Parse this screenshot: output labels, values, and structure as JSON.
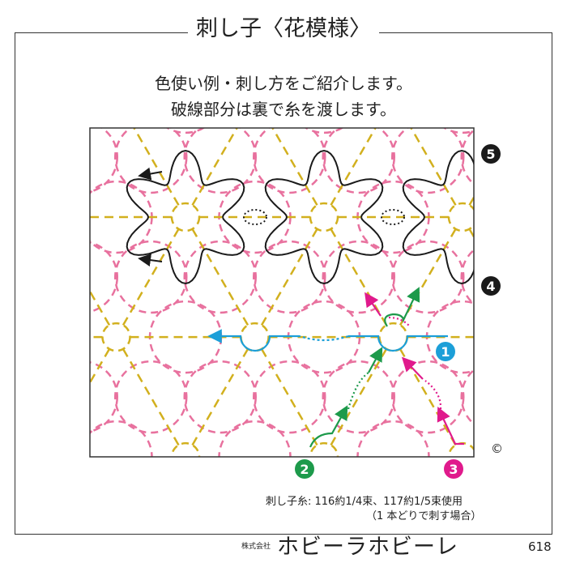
{
  "title": "刺し子〈花模様〉",
  "intro": [
    "色使い例・刺し方をご紹介します。",
    "破線部分は裏で糸を渡します。"
  ],
  "steps": [
    "1",
    "2",
    "3",
    "4",
    "5"
  ],
  "colors": {
    "pink": "#e8719e",
    "yellow": "#d2b01e",
    "blue": "#1c9fd8",
    "green": "#1d9a4b",
    "magenta": "#e01a8c",
    "black": "#1a1a1a"
  },
  "thread_note": "刺し子糸: 116約1/4束、117約1/5束使用",
  "thread_note2": "（1 本どりで刺す場合）",
  "maker_prefix": "株式会社",
  "maker": "ホビーラホビーレ",
  "page_number": "618",
  "copyright": "©"
}
